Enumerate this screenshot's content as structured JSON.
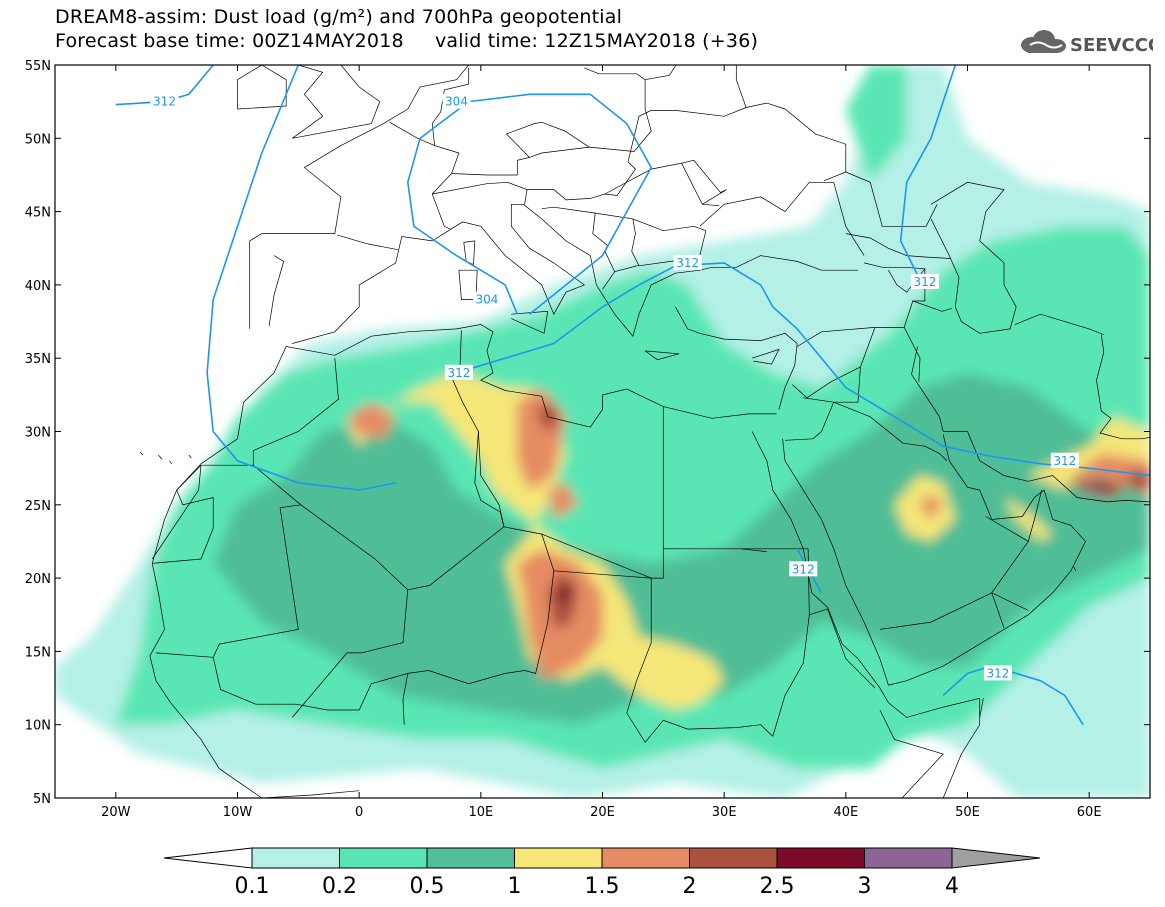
{
  "header": {
    "title_line1": "DREAM8-assim: Dust load (g/m²) and 700hPa geopotential",
    "title_line2": "Forecast base time: 00Z14MAY2018     valid time: 12Z15MAY2018 (+36)"
  },
  "logo": {
    "text": "SEEVCCC",
    "icon": "cloud-icon"
  },
  "map": {
    "lon_range": [
      -25,
      65
    ],
    "lat_range": [
      5,
      55
    ],
    "lat_ticks": [
      {
        "value": 55,
        "label": "55N"
      },
      {
        "value": 50,
        "label": "50N"
      },
      {
        "value": 45,
        "label": "45N"
      },
      {
        "value": 40,
        "label": "40N"
      },
      {
        "value": 35,
        "label": "35N"
      },
      {
        "value": 30,
        "label": "30N"
      },
      {
        "value": 25,
        "label": "25N"
      },
      {
        "value": 20,
        "label": "20N"
      },
      {
        "value": 15,
        "label": "15N"
      },
      {
        "value": 10,
        "label": "10N"
      },
      {
        "value": 5,
        "label": "5N"
      }
    ],
    "lon_ticks": [
      {
        "value": -20,
        "label": "20W"
      },
      {
        "value": -10,
        "label": "10W"
      },
      {
        "value": 0,
        "label": "0"
      },
      {
        "value": 10,
        "label": "10E"
      },
      {
        "value": 20,
        "label": "20E"
      },
      {
        "value": 30,
        "label": "30E"
      },
      {
        "value": 40,
        "label": "40E"
      },
      {
        "value": 50,
        "label": "50E"
      },
      {
        "value": 60,
        "label": "60E"
      }
    ],
    "contour_labels": [
      {
        "text": "312",
        "lon": -16,
        "lat": 52.5
      },
      {
        "text": "304",
        "lon": 8,
        "lat": 52.5
      },
      {
        "text": "312",
        "lon": 27,
        "lat": 41.5
      },
      {
        "text": "304",
        "lon": 10.5,
        "lat": 39
      },
      {
        "text": "312",
        "lon": 8.2,
        "lat": 34
      },
      {
        "text": "312",
        "lon": 46.5,
        "lat": 40.2
      },
      {
        "text": "312",
        "lon": 58,
        "lat": 28
      },
      {
        "text": "312",
        "lon": 36.5,
        "lat": 20.6
      },
      {
        "text": "312",
        "lon": 52.5,
        "lat": 13.5
      }
    ]
  },
  "colorbar": {
    "colors": [
      "#b4f0e6",
      "#5ae6b4",
      "#50be96",
      "#f5e678",
      "#e68c64",
      "#aa503c",
      "#7d0a28",
      "#8c6496"
    ],
    "under_color": "#ffffff",
    "over_color": "#a0a0a0",
    "labels": [
      "0.1",
      "0.2",
      "0.5",
      "1",
      "1.5",
      "2",
      "2.5",
      "3",
      "4"
    ]
  },
  "colors": {
    "contour": "#1e96f0",
    "border": "#000000"
  }
}
